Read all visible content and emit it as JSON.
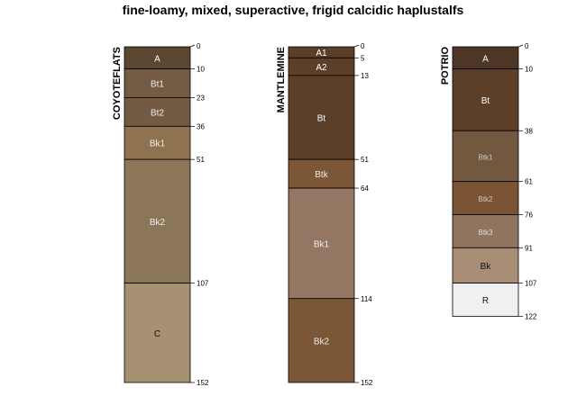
{
  "chart_data": {
    "type": "soil-profile",
    "title": "fine-loamy, mixed, superactive, frigid calcidic haplustalfs",
    "depth_units": "cm",
    "max_depth": 152,
    "profiles": [
      {
        "name": "COYOTEFLATS",
        "horizons": [
          {
            "name": "A",
            "top": 0,
            "bottom": 10,
            "color": "#5a4631",
            "text": "#ffffff"
          },
          {
            "name": "Bt1",
            "top": 10,
            "bottom": 23,
            "color": "#735c43",
            "text": "#eeeeee"
          },
          {
            "name": "Bt2",
            "top": 23,
            "bottom": 36,
            "color": "#725b42",
            "text": "#eeeeee"
          },
          {
            "name": "Bk1",
            "top": 36,
            "bottom": 51,
            "color": "#8f7350",
            "text": "#eeeeee"
          },
          {
            "name": "Bk2",
            "top": 51,
            "bottom": 107,
            "color": "#8c7659",
            "text": "#eeeeee"
          },
          {
            "name": "C",
            "top": 107,
            "bottom": 152,
            "color": "#a69272",
            "text": "#111111"
          }
        ]
      },
      {
        "name": "MANTLEMINE",
        "horizons": [
          {
            "name": "A1",
            "top": 0,
            "bottom": 5,
            "color": "#5c3f28",
            "text": "#ffffff"
          },
          {
            "name": "A2",
            "top": 5,
            "bottom": 13,
            "color": "#5c3f28",
            "text": "#ffffff"
          },
          {
            "name": "Bt",
            "top": 13,
            "bottom": 51,
            "color": "#5c3f28",
            "text": "#ffffff"
          },
          {
            "name": "Btk",
            "top": 51,
            "bottom": 64,
            "color": "#7b5637",
            "text": "#eeeeee"
          },
          {
            "name": "Bk1",
            "top": 64,
            "bottom": 114,
            "color": "#937763",
            "text": "#eeeeee"
          },
          {
            "name": "Bk2",
            "top": 114,
            "bottom": 152,
            "color": "#7b5637",
            "text": "#eeeeee"
          }
        ]
      },
      {
        "name": "POTRIO",
        "horizons": [
          {
            "name": "A",
            "top": 0,
            "bottom": 10,
            "color": "#4d3626",
            "text": "#ffffff"
          },
          {
            "name": "Bt",
            "top": 10,
            "bottom": 38,
            "color": "#5c3f28",
            "text": "#ffffff"
          },
          {
            "name": "Btk1",
            "top": 38,
            "bottom": 61,
            "color": "#735840",
            "text": "#cccccc"
          },
          {
            "name": "Btk2",
            "top": 61,
            "bottom": 76,
            "color": "#7a5435",
            "text": "#cccccc"
          },
          {
            "name": "Btk3",
            "top": 76,
            "bottom": 91,
            "color": "#8f7560",
            "text": "#dddddd"
          },
          {
            "name": "Bk",
            "top": 91,
            "bottom": 107,
            "color": "#a88e76",
            "text": "#111111"
          },
          {
            "name": "R",
            "top": 107,
            "bottom": 122,
            "color": "#f0f0f0",
            "text": "#111111"
          }
        ]
      }
    ]
  }
}
